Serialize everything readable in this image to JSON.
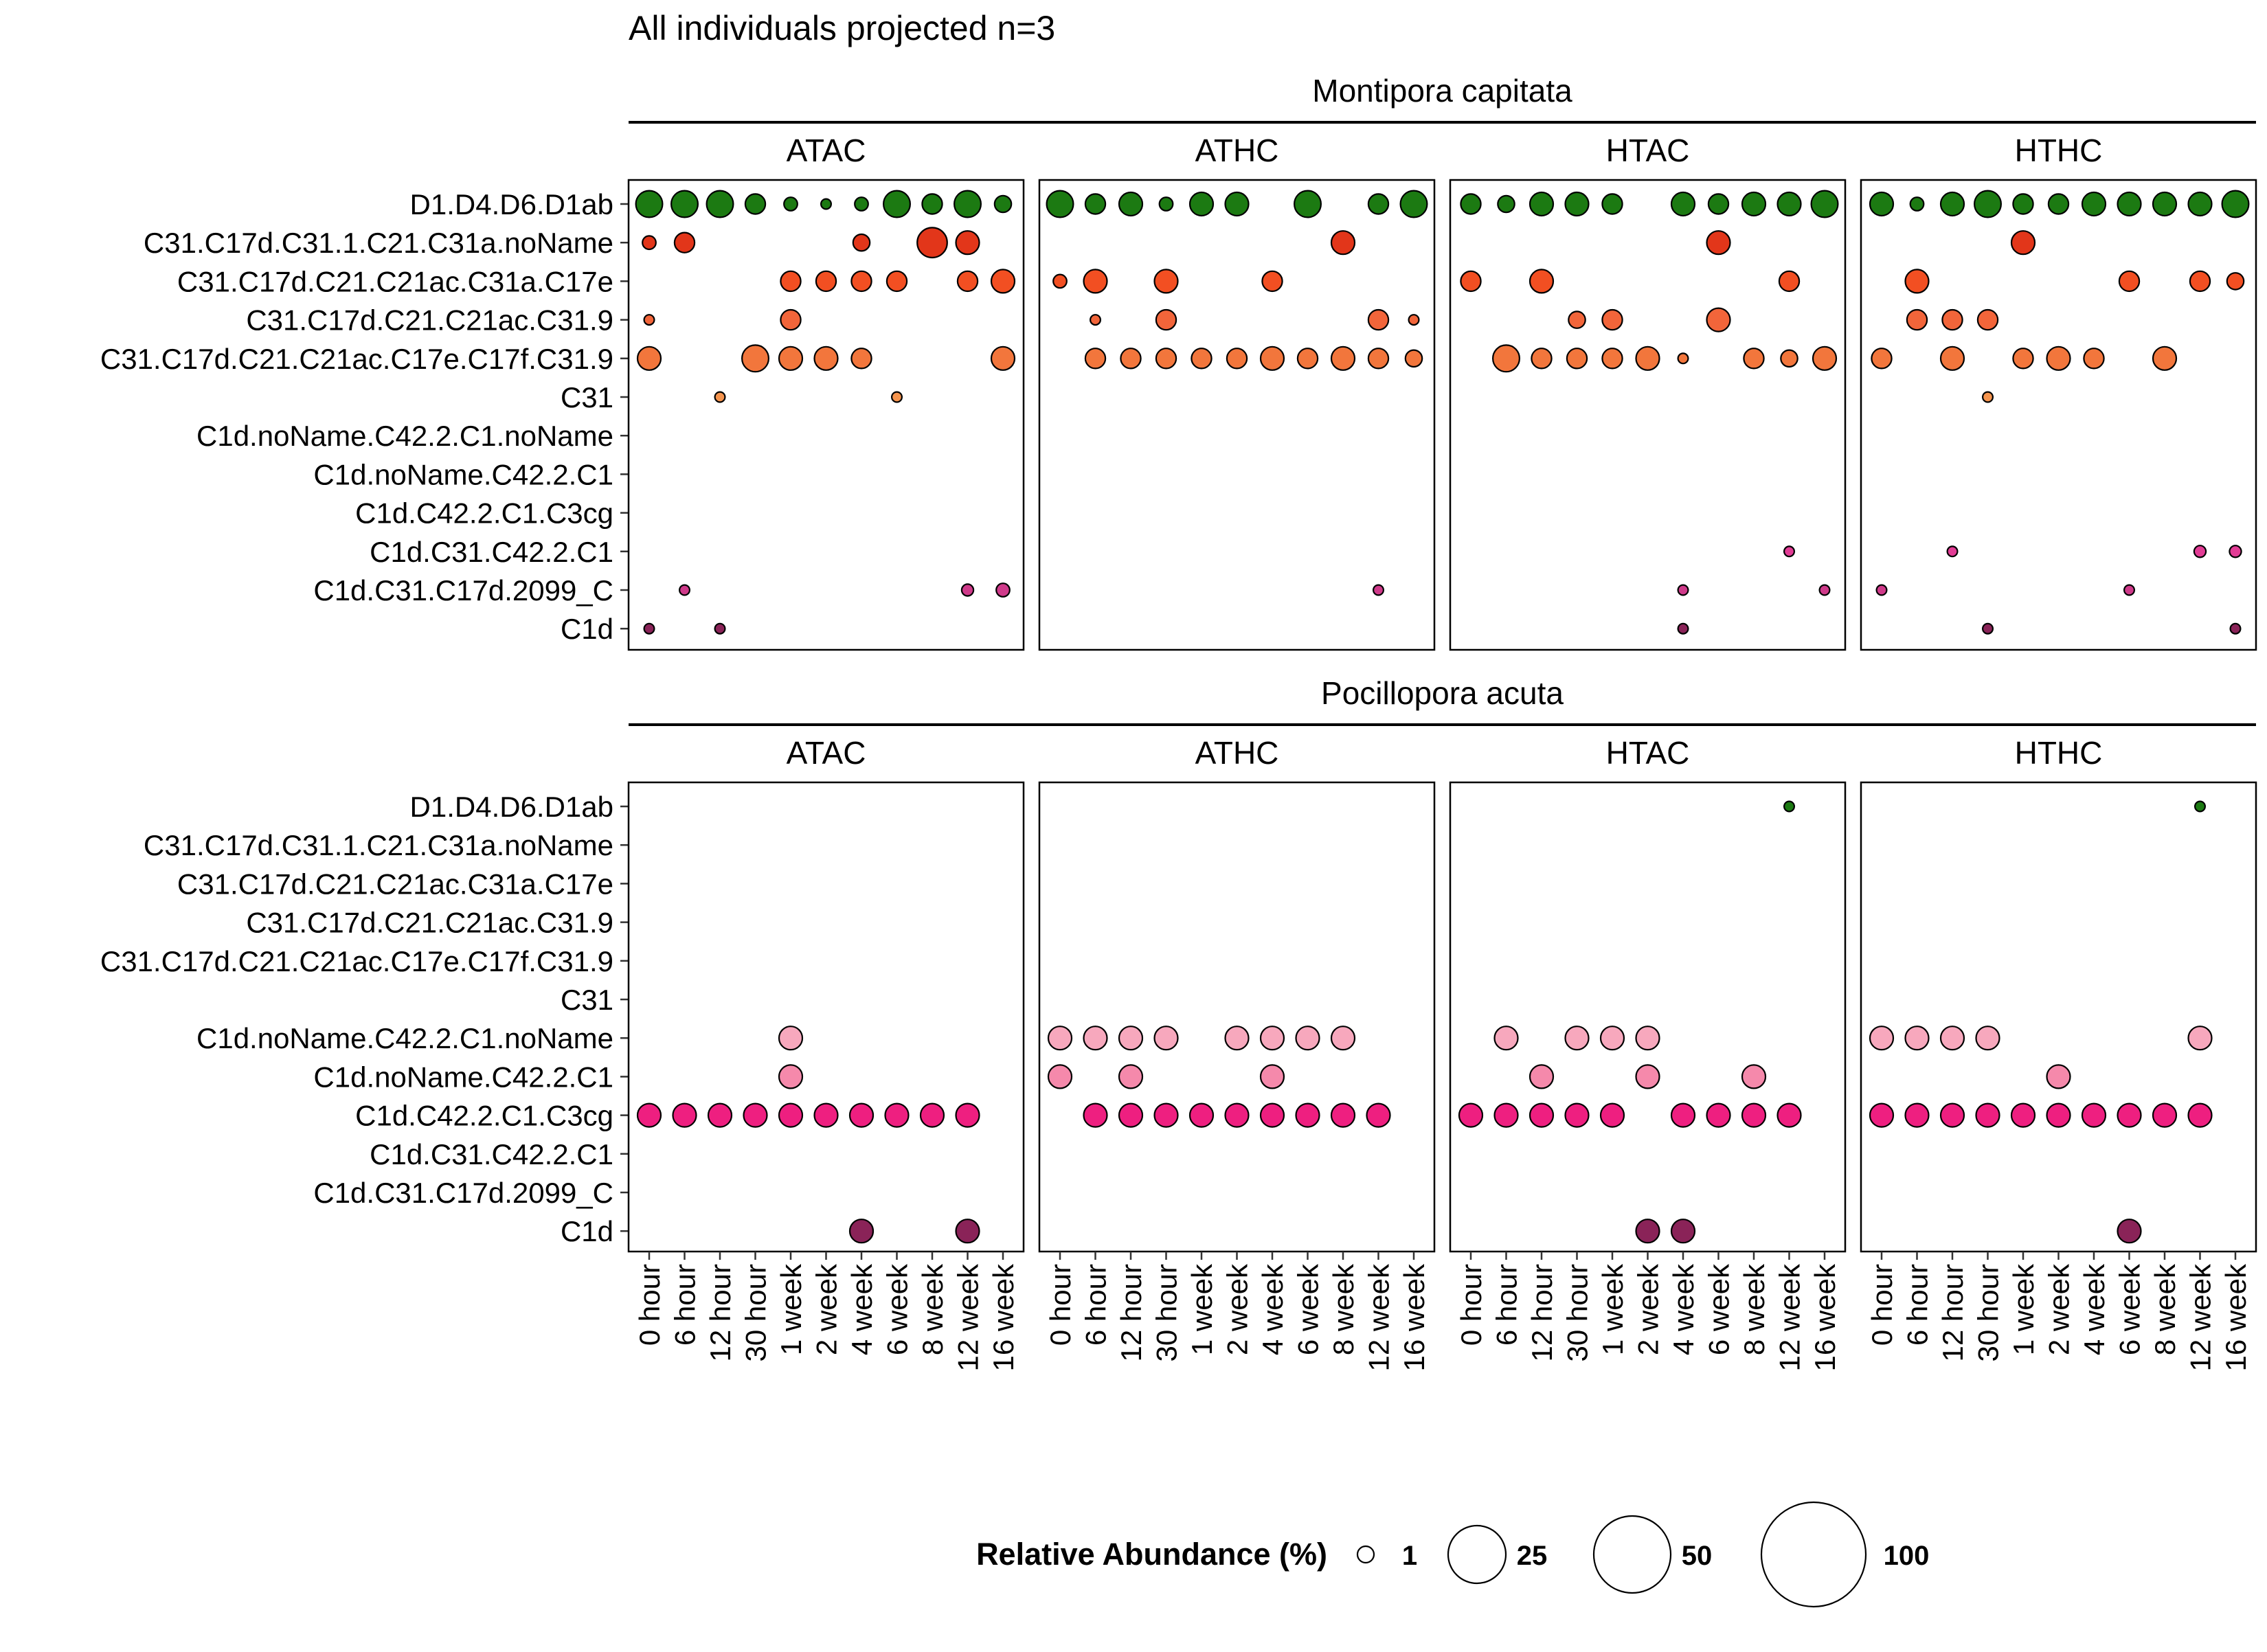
{
  "chart_data": {
    "type": "bubble",
    "title": "All individuals projected n=3",
    "x_categories": [
      "0 hour",
      "6 hour",
      "12 hour",
      "30 hour",
      "1 week",
      "2 week",
      "4 week",
      "6 week",
      "8 week",
      "12 week",
      "16 week"
    ],
    "y_categories": [
      "D1.D4.D6.D1ab",
      "C31.C17d.C31.1.C21.C31a.noName",
      "C31.C17d.C21.C21ac.C31a.C17e",
      "C31.C17d.C21.C21ac.C31.9",
      "C31.C17d.C21.C21ac.C17e.C17f.C31.9",
      "C31",
      "C1d.noName.C42.2.C1.noName",
      "C1d.noName.C42.2.C1",
      "C1d.C42.2.C1.C3cg",
      "C1d.C31.C42.2.C1",
      "C1d.C31.C17d.2099_C",
      "C1d"
    ],
    "treatments": [
      "ATAC",
      "ATHC",
      "HTAC",
      "HTHC"
    ],
    "species": [
      "Montipora capitata",
      "Pocillopora acuta"
    ],
    "row_colors": [
      "#1c7a12",
      "#e2361a",
      "#f24f22",
      "#f2653a",
      "#f2763c",
      "#f5944e",
      "#f7a8bd",
      "#f589ab",
      "#ee1f80",
      "#e23c95",
      "#cf3a8a",
      "#8a2358"
    ],
    "legend": {
      "title": "Relative Abundance (%)",
      "values": [
        1,
        25,
        50,
        100
      ],
      "position": "bottom"
    },
    "series": [
      {
        "species": "Montipora capitata",
        "treatment": "ATAC",
        "points": [
          [
            0,
            0,
            6
          ],
          [
            1,
            0,
            6
          ],
          [
            2,
            0,
            6
          ],
          [
            3,
            0,
            4
          ],
          [
            4,
            0,
            2
          ],
          [
            5,
            0,
            1
          ],
          [
            6,
            0,
            2
          ],
          [
            7,
            0,
            6
          ],
          [
            8,
            0,
            4
          ],
          [
            9,
            0,
            6
          ],
          [
            10,
            0,
            3
          ],
          [
            0,
            1,
            2
          ],
          [
            1,
            1,
            4
          ],
          [
            6,
            1,
            3
          ],
          [
            8,
            1,
            7
          ],
          [
            9,
            1,
            5
          ],
          [
            4,
            2,
            4
          ],
          [
            5,
            2,
            4
          ],
          [
            6,
            2,
            4
          ],
          [
            7,
            2,
            4
          ],
          [
            9,
            2,
            4
          ],
          [
            10,
            2,
            5
          ],
          [
            0,
            3,
            1
          ],
          [
            4,
            3,
            4
          ],
          [
            0,
            4,
            5
          ],
          [
            3,
            4,
            6
          ],
          [
            4,
            4,
            5
          ],
          [
            5,
            4,
            5
          ],
          [
            6,
            4,
            4
          ],
          [
            10,
            4,
            5
          ],
          [
            2,
            5,
            1
          ],
          [
            7,
            5,
            1
          ],
          [
            1,
            10,
            1
          ],
          [
            9,
            10,
            1.5
          ],
          [
            10,
            10,
            2
          ],
          [
            0,
            11,
            1
          ],
          [
            2,
            11,
            1
          ]
        ]
      },
      {
        "species": "Montipora capitata",
        "treatment": "ATHC",
        "points": [
          [
            0,
            0,
            6
          ],
          [
            1,
            0,
            4
          ],
          [
            2,
            0,
            5
          ],
          [
            3,
            0,
            2
          ],
          [
            4,
            0,
            5
          ],
          [
            5,
            0,
            5
          ],
          [
            7,
            0,
            6
          ],
          [
            9,
            0,
            4
          ],
          [
            10,
            0,
            6
          ],
          [
            8,
            1,
            5
          ],
          [
            0,
            2,
            2
          ],
          [
            1,
            2,
            5
          ],
          [
            3,
            2,
            5
          ],
          [
            6,
            2,
            4
          ],
          [
            1,
            3,
            1
          ],
          [
            3,
            3,
            4
          ],
          [
            9,
            3,
            4
          ],
          [
            10,
            3,
            1
          ],
          [
            1,
            4,
            4
          ],
          [
            2,
            4,
            4
          ],
          [
            3,
            4,
            4
          ],
          [
            4,
            4,
            4
          ],
          [
            5,
            4,
            4
          ],
          [
            6,
            4,
            5
          ],
          [
            7,
            4,
            4
          ],
          [
            8,
            4,
            5
          ],
          [
            9,
            4,
            4
          ],
          [
            10,
            4,
            3
          ],
          [
            9,
            10,
            1
          ]
        ]
      },
      {
        "species": "Montipora capitata",
        "treatment": "HTAC",
        "points": [
          [
            0,
            0,
            4
          ],
          [
            1,
            0,
            3
          ],
          [
            2,
            0,
            5
          ],
          [
            3,
            0,
            5
          ],
          [
            4,
            0,
            4
          ],
          [
            6,
            0,
            5
          ],
          [
            7,
            0,
            4
          ],
          [
            8,
            0,
            5
          ],
          [
            9,
            0,
            5
          ],
          [
            10,
            0,
            6
          ],
          [
            7,
            1,
            5
          ],
          [
            0,
            2,
            4
          ],
          [
            2,
            2,
            5
          ],
          [
            9,
            2,
            4
          ],
          [
            3,
            3,
            3
          ],
          [
            4,
            3,
            4
          ],
          [
            7,
            3,
            5
          ],
          [
            1,
            4,
            6
          ],
          [
            2,
            4,
            4
          ],
          [
            3,
            4,
            4
          ],
          [
            4,
            4,
            4
          ],
          [
            5,
            4,
            5
          ],
          [
            6,
            4,
            1
          ],
          [
            8,
            4,
            4
          ],
          [
            9,
            4,
            3
          ],
          [
            10,
            4,
            5
          ],
          [
            9,
            9,
            1
          ],
          [
            6,
            10,
            1
          ],
          [
            10,
            10,
            1
          ],
          [
            6,
            11,
            1
          ]
        ]
      },
      {
        "species": "Montipora capitata",
        "treatment": "HTHC",
        "points": [
          [
            0,
            0,
            5
          ],
          [
            1,
            0,
            2
          ],
          [
            2,
            0,
            5
          ],
          [
            3,
            0,
            6
          ],
          [
            4,
            0,
            4
          ],
          [
            5,
            0,
            4
          ],
          [
            6,
            0,
            5
          ],
          [
            7,
            0,
            5
          ],
          [
            8,
            0,
            5
          ],
          [
            9,
            0,
            5
          ],
          [
            10,
            0,
            6
          ],
          [
            4,
            1,
            5
          ],
          [
            1,
            2,
            5
          ],
          [
            7,
            2,
            4
          ],
          [
            9,
            2,
            4
          ],
          [
            10,
            2,
            3
          ],
          [
            1,
            3,
            4
          ],
          [
            2,
            3,
            4
          ],
          [
            3,
            3,
            4
          ],
          [
            0,
            4,
            4
          ],
          [
            2,
            4,
            5
          ],
          [
            4,
            4,
            4
          ],
          [
            5,
            4,
            5
          ],
          [
            6,
            4,
            4
          ],
          [
            8,
            4,
            5
          ],
          [
            3,
            5,
            1
          ],
          [
            2,
            9,
            1
          ],
          [
            9,
            9,
            1.5
          ],
          [
            10,
            9,
            1.5
          ],
          [
            0,
            10,
            1
          ],
          [
            7,
            10,
            1
          ],
          [
            3,
            11,
            1
          ],
          [
            10,
            11,
            1
          ]
        ]
      },
      {
        "species": "Pocillopora acuta",
        "treatment": "ATAC",
        "points": [
          [
            4,
            6,
            5
          ],
          [
            4,
            7,
            5
          ],
          [
            0,
            8,
            5
          ],
          [
            1,
            8,
            5
          ],
          [
            2,
            8,
            5
          ],
          [
            3,
            8,
            5
          ],
          [
            4,
            8,
            5
          ],
          [
            5,
            8,
            5
          ],
          [
            6,
            8,
            5
          ],
          [
            7,
            8,
            5
          ],
          [
            8,
            8,
            5
          ],
          [
            9,
            8,
            5
          ],
          [
            6,
            11,
            5
          ],
          [
            9,
            11,
            5
          ]
        ]
      },
      {
        "species": "Pocillopora acuta",
        "treatment": "ATHC",
        "points": [
          [
            0,
            6,
            5
          ],
          [
            1,
            6,
            5
          ],
          [
            2,
            6,
            5
          ],
          [
            3,
            6,
            5
          ],
          [
            5,
            6,
            5
          ],
          [
            6,
            6,
            5
          ],
          [
            7,
            6,
            5
          ],
          [
            8,
            6,
            5
          ],
          [
            0,
            7,
            5
          ],
          [
            2,
            7,
            5
          ],
          [
            6,
            7,
            5
          ],
          [
            1,
            8,
            5
          ],
          [
            2,
            8,
            5
          ],
          [
            3,
            8,
            5
          ],
          [
            4,
            8,
            5
          ],
          [
            5,
            8,
            5
          ],
          [
            6,
            8,
            5
          ],
          [
            7,
            8,
            5
          ],
          [
            8,
            8,
            5
          ],
          [
            9,
            8,
            5
          ]
        ]
      },
      {
        "species": "Pocillopora acuta",
        "treatment": "HTAC",
        "points": [
          [
            9,
            0,
            1
          ],
          [
            1,
            6,
            5
          ],
          [
            3,
            6,
            5
          ],
          [
            4,
            6,
            5
          ],
          [
            5,
            6,
            5
          ],
          [
            2,
            7,
            5
          ],
          [
            5,
            7,
            5
          ],
          [
            8,
            7,
            5
          ],
          [
            0,
            8,
            5
          ],
          [
            1,
            8,
            5
          ],
          [
            2,
            8,
            5
          ],
          [
            3,
            8,
            5
          ],
          [
            4,
            8,
            5
          ],
          [
            6,
            8,
            5
          ],
          [
            7,
            8,
            5
          ],
          [
            8,
            8,
            5
          ],
          [
            9,
            8,
            5
          ],
          [
            5,
            11,
            5
          ],
          [
            6,
            11,
            5
          ]
        ]
      },
      {
        "species": "Pocillopora acuta",
        "treatment": "HTHC",
        "points": [
          [
            9,
            0,
            1
          ],
          [
            0,
            6,
            5
          ],
          [
            1,
            6,
            5
          ],
          [
            2,
            6,
            5
          ],
          [
            3,
            6,
            5
          ],
          [
            9,
            6,
            5
          ],
          [
            5,
            7,
            5
          ],
          [
            0,
            8,
            5
          ],
          [
            1,
            8,
            5
          ],
          [
            2,
            8,
            5
          ],
          [
            3,
            8,
            5
          ],
          [
            4,
            8,
            5
          ],
          [
            5,
            8,
            5
          ],
          [
            6,
            8,
            5
          ],
          [
            7,
            8,
            5
          ],
          [
            8,
            8,
            5
          ],
          [
            9,
            8,
            5
          ],
          [
            7,
            11,
            5
          ]
        ]
      }
    ]
  }
}
